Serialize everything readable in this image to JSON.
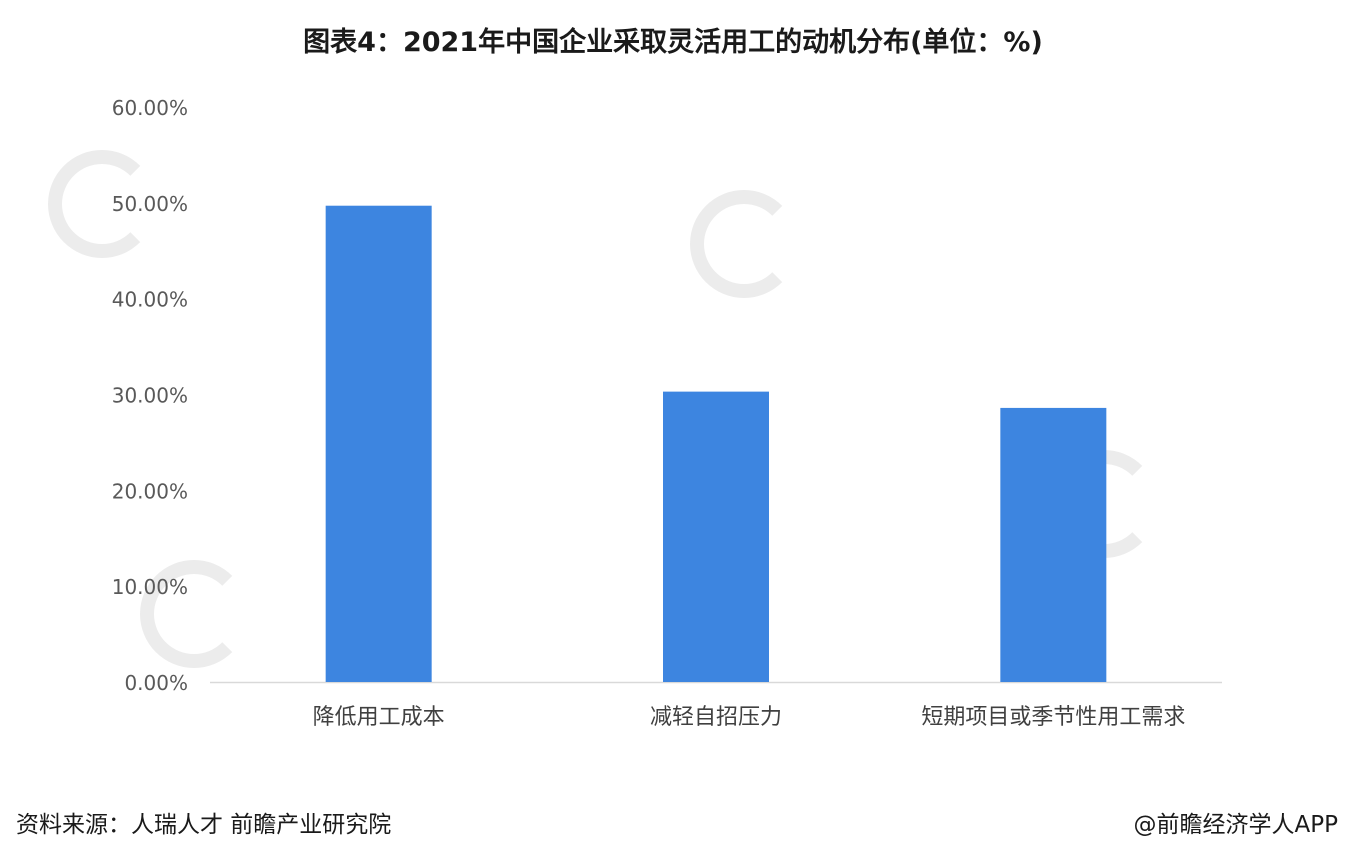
{
  "chart_data": {
    "type": "bar",
    "title": "图表4：2021年中国企业采取灵活用工的动机分布(单位：%)",
    "categories": [
      "降低用工成本",
      "减轻自招压力",
      "短期项目或季节性用工需求"
    ],
    "values": [
      49.7,
      30.3,
      28.6
    ],
    "ylim": [
      0,
      60
    ],
    "yticks": [
      "0.00%",
      "10.00%",
      "20.00%",
      "30.00%",
      "40.00%",
      "50.00%",
      "60.00%"
    ],
    "ytick_values": [
      0,
      10,
      20,
      30,
      40,
      50,
      60
    ],
    "grid": false,
    "bar_color": "#3d85e0",
    "xlabel": "",
    "ylabel": ""
  },
  "footer": {
    "source": "资料来源：人瑞人才 前瞻产业研究院",
    "credit": "@前瞻经济学人APP"
  }
}
